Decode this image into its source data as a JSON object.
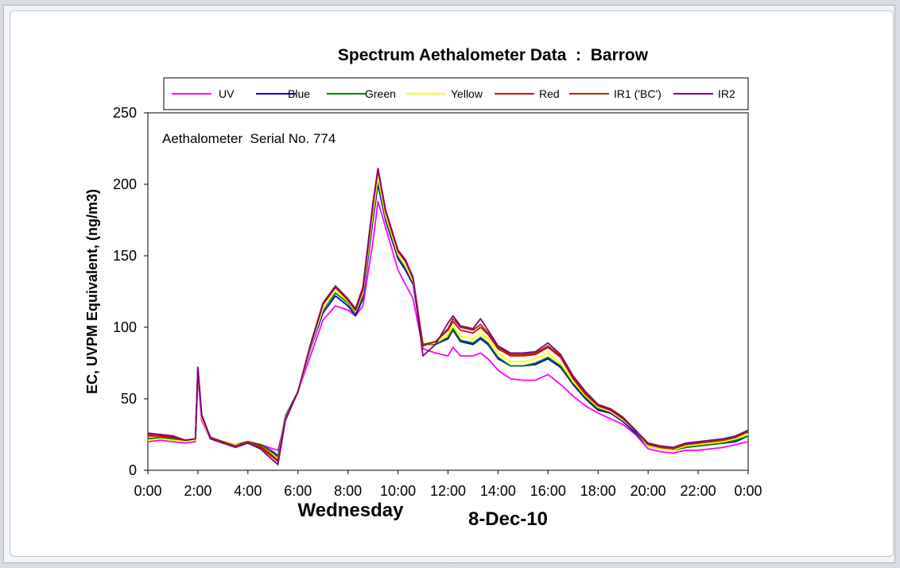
{
  "chart_data": {
    "type": "line",
    "title": "Spectrum Aethalometer Data  :  Barrow",
    "ylabel": "EC, UVPM Equivalent, (ng/m3)",
    "xlabel_day": "Wednesday",
    "xlabel_date": "8-Dec-10",
    "annotation": "Aethalometer  Serial No. 774",
    "ylim": [
      0,
      250
    ],
    "yticks": [
      "0",
      "50",
      "100",
      "150",
      "200",
      "250"
    ],
    "xlim": [
      0,
      24
    ],
    "xticks": [
      "0:00",
      "2:00",
      "4:00",
      "6:00",
      "8:00",
      "10:00",
      "12:00",
      "14:00",
      "16:00",
      "18:00",
      "20:00",
      "22:00",
      "0:00"
    ],
    "legend_position": "top",
    "x": [
      0,
      0.5,
      1,
      1.5,
      1.9,
      2.0,
      2.15,
      2.5,
      3,
      3.5,
      4,
      4.5,
      5,
      5.2,
      5.5,
      6,
      6.5,
      7,
      7.5,
      8,
      8.3,
      8.6,
      9,
      9.2,
      9.5,
      10,
      10.3,
      10.6,
      11,
      11.5,
      12,
      12.2,
      12.5,
      13,
      13.3,
      13.6,
      14,
      14.5,
      15,
      15.5,
      16,
      16.5,
      17,
      17.5,
      18,
      18.5,
      19,
      19.5,
      20,
      20.5,
      21,
      21.5,
      22,
      22.5,
      23,
      23.5,
      24
    ],
    "series": [
      {
        "name": "UV",
        "color": "#ff00ff",
        "values": [
          20,
          21,
          20,
          19,
          20,
          66,
          35,
          22,
          19,
          18,
          19,
          18,
          15,
          14,
          35,
          55,
          80,
          105,
          115,
          112,
          108,
          115,
          160,
          188,
          170,
          140,
          130,
          120,
          85,
          82,
          80,
          86,
          80,
          80,
          82,
          78,
          70,
          64,
          63,
          63,
          67,
          60,
          52,
          45,
          40,
          36,
          32,
          25,
          15,
          13,
          12,
          14,
          14,
          15,
          16,
          18,
          20
        ]
      },
      {
        "name": "Blue",
        "color": "#0000cc",
        "values": [
          22,
          23,
          22,
          20,
          21,
          70,
          38,
          23,
          20,
          18,
          20,
          18,
          13,
          10,
          38,
          55,
          85,
          110,
          122,
          115,
          108,
          120,
          175,
          200,
          175,
          148,
          140,
          130,
          88,
          88,
          92,
          98,
          90,
          88,
          92,
          88,
          78,
          73,
          73,
          74,
          78,
          72,
          60,
          50,
          42,
          40,
          34,
          26,
          17,
          15,
          14,
          16,
          17,
          18,
          19,
          20,
          24
        ]
      },
      {
        "name": "Green",
        "color": "#008000",
        "values": [
          22,
          23,
          22,
          20,
          21,
          70,
          38,
          23,
          20,
          18,
          20,
          18,
          12,
          9,
          37,
          55,
          86,
          112,
          124,
          117,
          110,
          122,
          178,
          203,
          177,
          150,
          142,
          132,
          88,
          88,
          93,
          99,
          91,
          89,
          93,
          89,
          79,
          73,
          73,
          75,
          79,
          73,
          61,
          51,
          43,
          41,
          35,
          27,
          17,
          15,
          14,
          16,
          17,
          18,
          19,
          21,
          24
        ]
      },
      {
        "name": "Yellow",
        "color": "#ffff00",
        "values": [
          21,
          22,
          21,
          20,
          21,
          69,
          37,
          22,
          20,
          18,
          19,
          17,
          11,
          8,
          37,
          54,
          86,
          113,
          126,
          118,
          111,
          124,
          180,
          205,
          178,
          151,
          143,
          132,
          88,
          89,
          95,
          101,
          94,
          92,
          96,
          92,
          82,
          76,
          76,
          78,
          82,
          75,
          62,
          52,
          44,
          41,
          35,
          28,
          17,
          15,
          14,
          17,
          18,
          19,
          20,
          22,
          25
        ]
      },
      {
        "name": "Red",
        "color": "#e00000",
        "values": [
          24,
          24,
          23,
          21,
          22,
          71,
          38,
          23,
          20,
          17,
          20,
          17,
          10,
          7,
          36,
          55,
          88,
          116,
          128,
          119,
          112,
          126,
          185,
          210,
          181,
          153,
          146,
          134,
          88,
          90,
          98,
          104,
          98,
          96,
          100,
          95,
          85,
          80,
          80,
          81,
          86,
          79,
          64,
          53,
          45,
          42,
          36,
          28,
          18,
          16,
          15,
          18,
          19,
          20,
          21,
          23,
          27
        ]
      },
      {
        "name": "IR1 ('BC')",
        "color": "#993300",
        "values": [
          25,
          25,
          24,
          21,
          22,
          72,
          39,
          23,
          20,
          17,
          20,
          16,
          9,
          6,
          36,
          55,
          88,
          117,
          129,
          120,
          113,
          128,
          187,
          211,
          182,
          154,
          147,
          135,
          87,
          90,
          99,
          106,
          100,
          98,
          102,
          96,
          86,
          81,
          81,
          82,
          87,
          80,
          65,
          54,
          45,
          43,
          36,
          28,
          18,
          16,
          15,
          18,
          19,
          20,
          21,
          23,
          27
        ]
      },
      {
        "name": "IR2",
        "color": "#800080",
        "values": [
          26,
          25,
          24,
          21,
          22,
          72,
          39,
          22,
          19,
          16,
          19,
          15,
          7,
          4,
          35,
          55,
          87,
          116,
          128,
          119,
          112,
          128,
          187,
          211,
          182,
          154,
          147,
          135,
          80,
          88,
          103,
          108,
          101,
          99,
          106,
          98,
          87,
          82,
          82,
          83,
          89,
          81,
          66,
          55,
          46,
          43,
          37,
          28,
          19,
          17,
          16,
          19,
          20,
          21,
          22,
          24,
          28
        ]
      }
    ]
  }
}
